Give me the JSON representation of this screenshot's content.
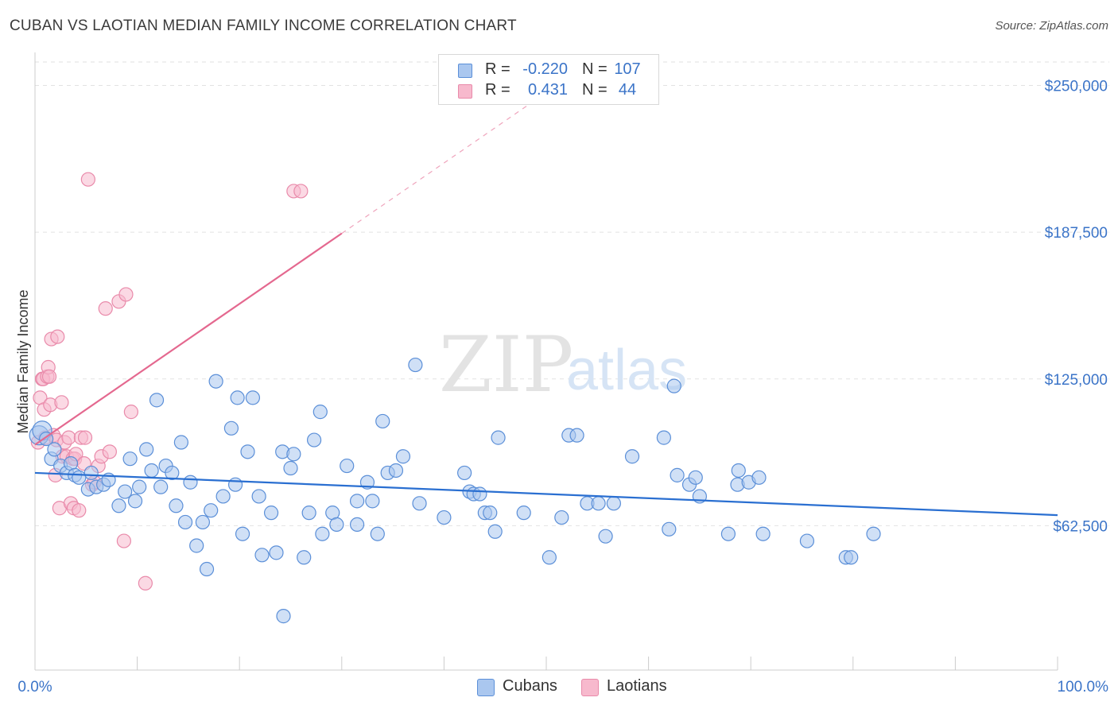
{
  "title": "CUBAN VS LAOTIAN MEDIAN FAMILY INCOME CORRELATION CHART",
  "source": "Source: ZipAtlas.com",
  "watermark": {
    "zip": "ZIP",
    "atlas": "atlas"
  },
  "colors": {
    "blue_fill": "#aac7ef",
    "blue_stroke": "#5b8fd8",
    "blue_line": "#2a6fd1",
    "pink_fill": "#f7b9cd",
    "pink_stroke": "#e98aaa",
    "pink_line": "#e4688f",
    "tick_text": "#3b74c8",
    "grid": "#e2e2e2"
  },
  "legend": {
    "rows": [
      {
        "r_label": "R =",
        "r_value": "-0.220",
        "n_label": "N =",
        "n_value": "107"
      },
      {
        "r_label": "R =",
        "r_value": "0.431",
        "n_label": "N =",
        "n_value": "44"
      }
    ]
  },
  "bottom_legend": {
    "series1": "Cubans",
    "series2": "Laotians"
  },
  "chart_data": {
    "type": "scatter",
    "title": "CUBAN VS LAOTIAN MEDIAN FAMILY INCOME CORRELATION CHART",
    "xlabel": "",
    "ylabel": "Median Family Income",
    "xlim": [
      0,
      100
    ],
    "ylim": [
      0,
      260000
    ],
    "x_tick_labels": [
      "0.0%",
      "100.0%"
    ],
    "y_ticks": [
      62500,
      125000,
      187500,
      250000
    ],
    "y_tick_labels": [
      "$62,500",
      "$125,000",
      "$187,500",
      "$250,000"
    ],
    "grid": true,
    "series": [
      {
        "name": "Cubans",
        "r": -0.22,
        "n": 107,
        "trend": {
          "x": [
            0,
            100
          ],
          "y": [
            85000,
            67000
          ]
        },
        "points": [
          [
            0.4,
            101000
          ],
          [
            0.7,
            103000
          ],
          [
            1.1,
            99500
          ],
          [
            1.6,
            91000
          ],
          [
            1.9,
            95000
          ],
          [
            2.5,
            88000
          ],
          [
            3.1,
            85000
          ],
          [
            3.5,
            89000
          ],
          [
            3.9,
            84000
          ],
          [
            4.3,
            83000
          ],
          [
            5.2,
            78000
          ],
          [
            5.5,
            85000
          ],
          [
            6.0,
            79000
          ],
          [
            6.7,
            80000
          ],
          [
            7.2,
            82000
          ],
          [
            8.2,
            71000
          ],
          [
            8.8,
            77000
          ],
          [
            9.3,
            91000
          ],
          [
            9.8,
            73000
          ],
          [
            10.2,
            79000
          ],
          [
            10.9,
            95000
          ],
          [
            11.4,
            86000
          ],
          [
            11.9,
            116000
          ],
          [
            12.3,
            79000
          ],
          [
            12.8,
            88000
          ],
          [
            13.4,
            85000
          ],
          [
            13.8,
            71000
          ],
          [
            14.3,
            98000
          ],
          [
            14.7,
            64000
          ],
          [
            15.2,
            81000
          ],
          [
            15.8,
            54000
          ],
          [
            16.4,
            64000
          ],
          [
            16.8,
            44000
          ],
          [
            17.2,
            69000
          ],
          [
            17.7,
            124000
          ],
          [
            18.4,
            75000
          ],
          [
            19.2,
            104000
          ],
          [
            19.6,
            80000
          ],
          [
            19.8,
            117000
          ],
          [
            20.3,
            59000
          ],
          [
            20.8,
            94000
          ],
          [
            21.3,
            117000
          ],
          [
            21.9,
            75000
          ],
          [
            22.2,
            50000
          ],
          [
            23.1,
            68000
          ],
          [
            23.6,
            51000
          ],
          [
            24.2,
            94000
          ],
          [
            24.3,
            24000
          ],
          [
            25.0,
            87000
          ],
          [
            25.3,
            93000
          ],
          [
            26.3,
            49000
          ],
          [
            26.8,
            68000
          ],
          [
            27.3,
            99000
          ],
          [
            27.9,
            111000
          ],
          [
            28.1,
            59000
          ],
          [
            29.1,
            68000
          ],
          [
            29.5,
            63000
          ],
          [
            30.5,
            88000
          ],
          [
            31.5,
            73000
          ],
          [
            31.5,
            63000
          ],
          [
            32.5,
            81000
          ],
          [
            33.0,
            73000
          ],
          [
            33.5,
            59000
          ],
          [
            34.0,
            107000
          ],
          [
            34.5,
            85000
          ],
          [
            35.3,
            86000
          ],
          [
            36.0,
            92000
          ],
          [
            37.2,
            131000
          ],
          [
            37.6,
            72000
          ],
          [
            40.0,
            66000
          ],
          [
            42.0,
            85000
          ],
          [
            42.5,
            77000
          ],
          [
            42.9,
            76000
          ],
          [
            43.5,
            76000
          ],
          [
            44.0,
            68000
          ],
          [
            44.5,
            68000
          ],
          [
            45.0,
            60000
          ],
          [
            45.3,
            100000
          ],
          [
            47.8,
            68000
          ],
          [
            50.3,
            49000
          ],
          [
            51.5,
            66000
          ],
          [
            52.2,
            101000
          ],
          [
            53.0,
            101000
          ],
          [
            54.0,
            72000
          ],
          [
            55.1,
            72000
          ],
          [
            55.8,
            58000
          ],
          [
            56.6,
            72000
          ],
          [
            58.4,
            92000
          ],
          [
            61.5,
            100000
          ],
          [
            62.0,
            61000
          ],
          [
            62.5,
            122000
          ],
          [
            62.8,
            84000
          ],
          [
            64.0,
            80000
          ],
          [
            64.6,
            83000
          ],
          [
            65.0,
            75000
          ],
          [
            67.8,
            59000
          ],
          [
            68.7,
            80000
          ],
          [
            68.8,
            86000
          ],
          [
            69.8,
            81000
          ],
          [
            70.8,
            83000
          ],
          [
            71.2,
            59000
          ],
          [
            75.5,
            56000
          ],
          [
            79.3,
            49000
          ],
          [
            79.8,
            49000
          ],
          [
            82.0,
            59000
          ]
        ]
      },
      {
        "name": "Laotians",
        "r": 0.431,
        "n": 44,
        "trend": {
          "x": [
            0,
            30
          ],
          "y": [
            97000,
            187000
          ],
          "extension": {
            "x": [
              30,
              50
            ],
            "y": [
              187000,
              247000
            ]
          }
        },
        "points": [
          [
            0.3,
            98000
          ],
          [
            0.5,
            117000
          ],
          [
            0.7,
            125000
          ],
          [
            0.8,
            125000
          ],
          [
            0.9,
            112000
          ],
          [
            1.0,
            100000
          ],
          [
            1.2,
            126000
          ],
          [
            1.3,
            130000
          ],
          [
            1.4,
            126000
          ],
          [
            1.5,
            114000
          ],
          [
            1.6,
            142000
          ],
          [
            1.8,
            101000
          ],
          [
            2.0,
            84000
          ],
          [
            2.1,
            99000
          ],
          [
            2.2,
            143000
          ],
          [
            2.4,
            70000
          ],
          [
            2.6,
            115000
          ],
          [
            2.7,
            92000
          ],
          [
            2.9,
            98000
          ],
          [
            3.1,
            92000
          ],
          [
            3.3,
            100000
          ],
          [
            3.5,
            72000
          ],
          [
            3.7,
            91000
          ],
          [
            3.8,
            70000
          ],
          [
            3.9,
            91000
          ],
          [
            4.0,
            93000
          ],
          [
            4.3,
            69000
          ],
          [
            4.5,
            100000
          ],
          [
            4.8,
            89000
          ],
          [
            4.9,
            100000
          ],
          [
            5.2,
            210000
          ],
          [
            5.6,
            80000
          ],
          [
            5.8,
            81000
          ],
          [
            6.2,
            88000
          ],
          [
            6.5,
            92000
          ],
          [
            6.9,
            155000
          ],
          [
            7.3,
            94000
          ],
          [
            8.2,
            158000
          ],
          [
            8.7,
            56000
          ],
          [
            8.9,
            161000
          ],
          [
            9.4,
            111000
          ],
          [
            10.8,
            38000
          ],
          [
            25.3,
            205000
          ],
          [
            26.0,
            205000
          ]
        ]
      }
    ]
  }
}
